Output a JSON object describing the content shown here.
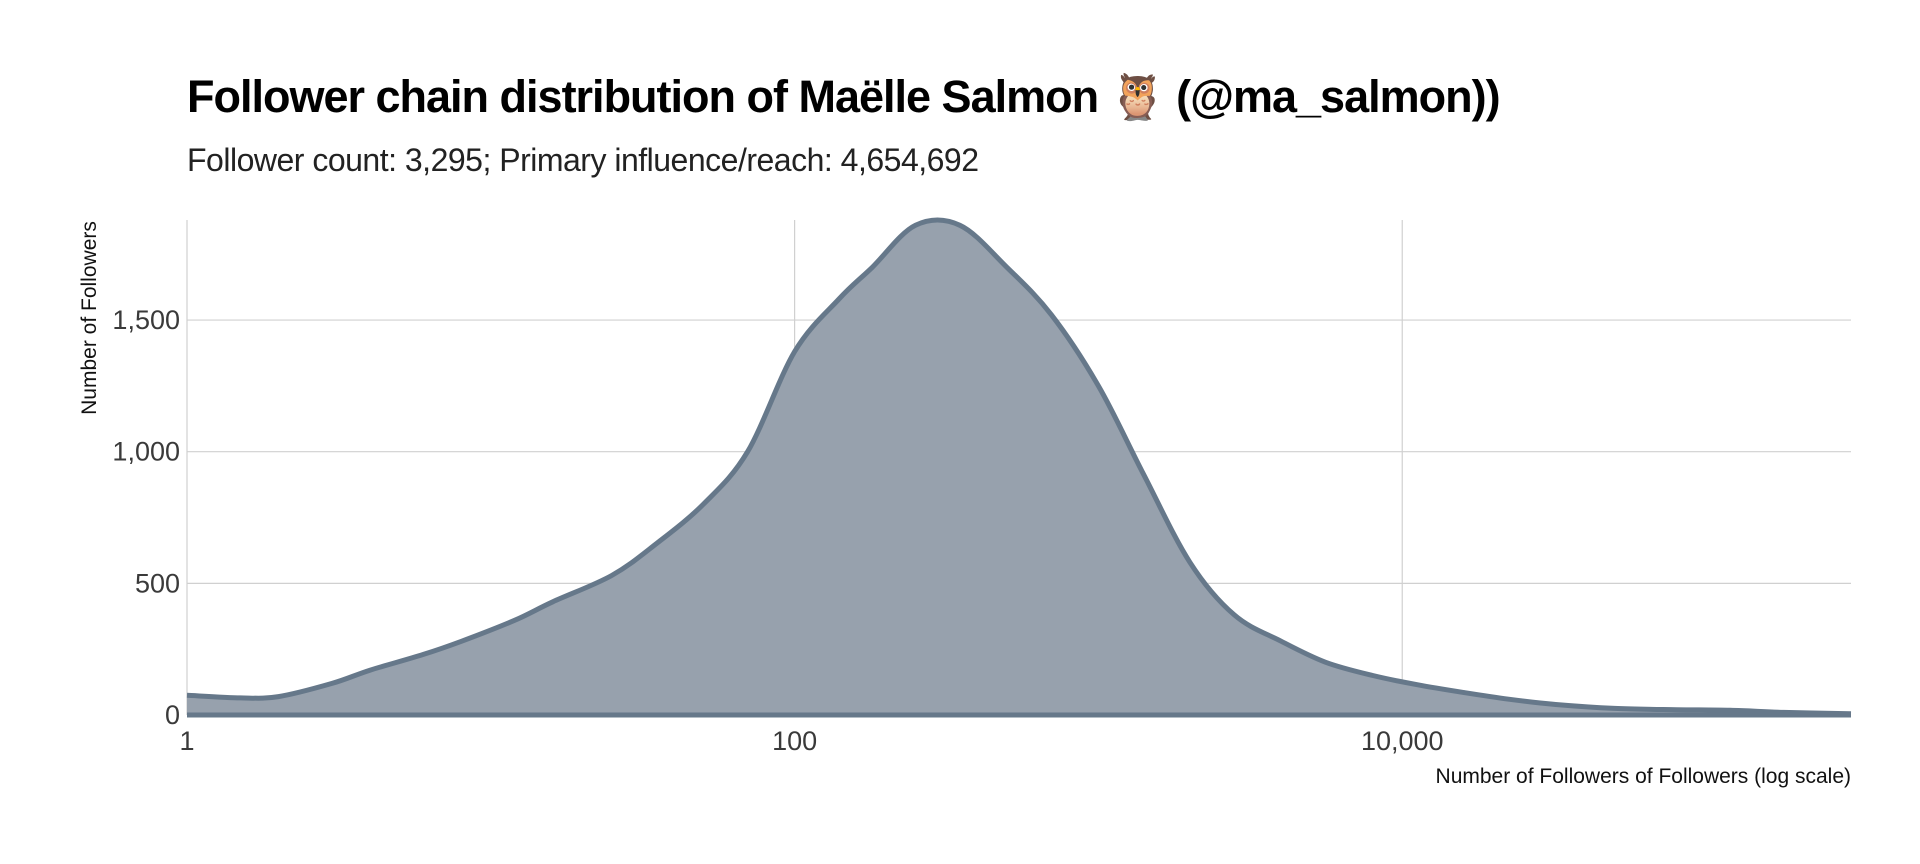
{
  "chart_data": {
    "type": "area",
    "title": "Follower chain distribution of Maëlle Salmon 🦉 (@ma_salmon))",
    "subtitle": "Follower count: 3,295; Primary influence/reach: 4,654,692",
    "xlabel": "Number of Followers of Followers (log scale)",
    "ylabel": "Number of Followers",
    "x_scale": "log10",
    "xlim": [
      1,
      300000
    ],
    "ylim": [
      0,
      1880
    ],
    "x_ticks": [
      1,
      100,
      10000
    ],
    "x_tick_labels": [
      "1",
      "100",
      "10,000"
    ],
    "y_ticks": [
      0,
      500,
      1000,
      1500
    ],
    "y_tick_labels": [
      "0",
      "500",
      "1,000",
      "1,500"
    ],
    "grid": true,
    "legend": "none",
    "colors": {
      "fill": "#97a1ad",
      "line": "#66788a",
      "grid": "#d0d0d0"
    },
    "series": [
      {
        "x": [
          1,
          1.5,
          2,
          3,
          4,
          6,
          8,
          12,
          16,
          25,
          35,
          50,
          70,
          100,
          140,
          180,
          250,
          350,
          500,
          700,
          1000,
          1400,
          2000,
          2800,
          4000,
          5600,
          8000,
          11200,
          16000,
          22400,
          32000,
          50000,
          80000,
          120000,
          180000,
          300000
        ],
        "y": [
          75,
          65,
          70,
          120,
          170,
          230,
          280,
          360,
          430,
          530,
          650,
          800,
          1000,
          1380,
          1580,
          1700,
          1860,
          1860,
          1700,
          1520,
          1250,
          920,
          580,
          380,
          280,
          200,
          150,
          115,
          85,
          60,
          40,
          25,
          20,
          18,
          10,
          5
        ]
      }
    ]
  }
}
